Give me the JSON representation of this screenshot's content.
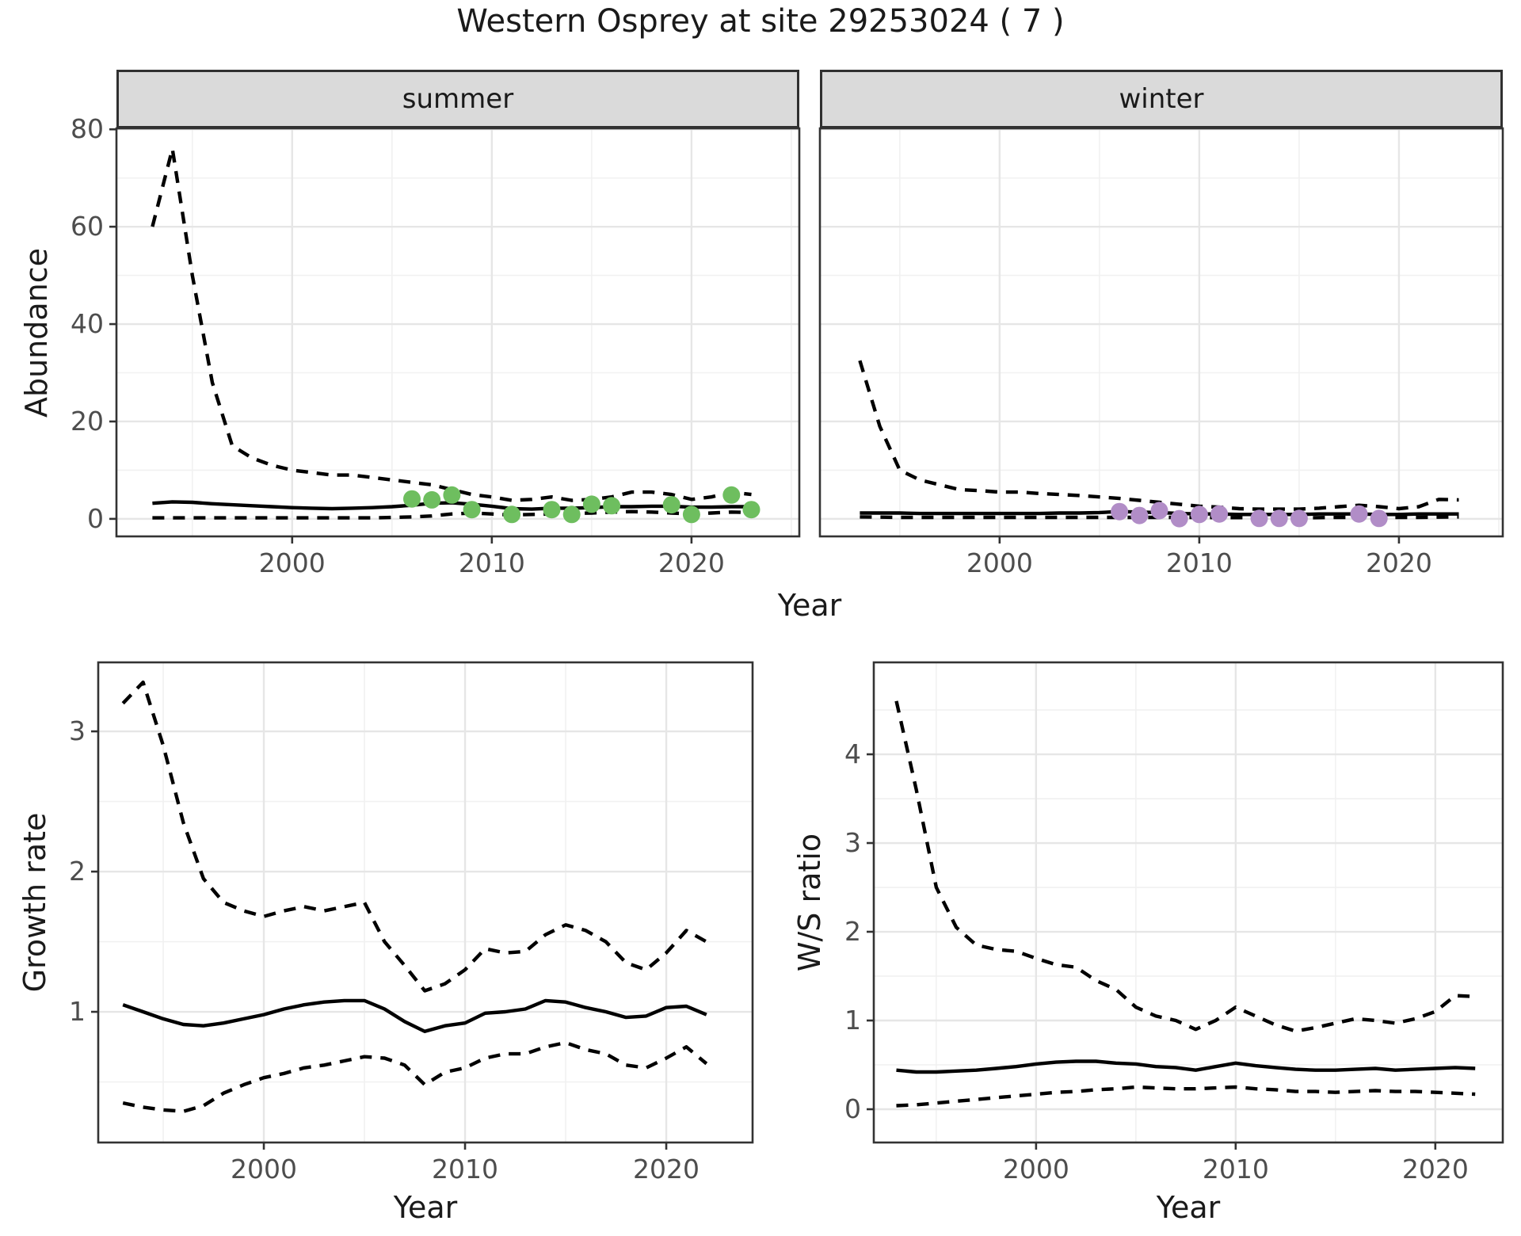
{
  "title": "Western Osprey at site 29253024 ( 7 )",
  "figures": {
    "abundance": {
      "ylabel": "Abundance",
      "xlabel": "Year",
      "facets": [
        {
          "label": "summer"
        },
        {
          "label": "winter"
        }
      ]
    },
    "growth": {
      "ylabel": "Growth rate",
      "xlabel": "Year"
    },
    "ws": {
      "ylabel": "W/S ratio",
      "xlabel": "Year"
    }
  },
  "colors": {
    "summer_points": "#6ebe5f",
    "winter_points": "#b18dc7",
    "line": "#000000",
    "grid_major": "#e6e6e6",
    "grid_minor": "#f1f1f1",
    "panel_border": "#333333",
    "strip_fill": "#dadada",
    "tick_label": "#4d4d4d"
  },
  "chart_data": [
    {
      "panel": "abundance-summer",
      "type": "line",
      "facet": "summer",
      "xlabel": "Year",
      "ylabel": "Abundance",
      "xlim": [
        1991.2,
        2025.4
      ],
      "ylim": [
        -3.6,
        80.2
      ],
      "x_ticks": [
        2000,
        2010,
        2020
      ],
      "x_minor": [
        1995,
        2005,
        2015,
        2025
      ],
      "y_ticks": [
        0,
        20,
        40,
        60,
        80
      ],
      "y_minor": [
        10,
        30,
        50,
        70
      ],
      "x": [
        1993,
        1994,
        1995,
        1996,
        1997,
        1998,
        1999,
        2000,
        2001,
        2002,
        2003,
        2004,
        2005,
        2006,
        2007,
        2008,
        2009,
        2010,
        2011,
        2012,
        2013,
        2014,
        2015,
        2016,
        2017,
        2018,
        2019,
        2020,
        2021,
        2022,
        2023
      ],
      "series": [
        {
          "name": "upper-ci",
          "style": "dashed",
          "y": [
            60,
            76,
            50,
            28,
            15,
            12.5,
            11,
            10,
            9.5,
            9,
            9,
            8.5,
            8,
            7.5,
            7,
            6,
            5,
            4.5,
            3.8,
            4,
            4.5,
            3.8,
            4,
            4.5,
            5.5,
            5.5,
            5,
            4,
            4.5,
            5.5,
            5
          ]
        },
        {
          "name": "lower-ci",
          "style": "dashed",
          "y": [
            0.2,
            0.2,
            0.2,
            0.2,
            0.2,
            0.2,
            0.2,
            0.2,
            0.2,
            0.2,
            0.2,
            0.2,
            0.3,
            0.4,
            0.6,
            1,
            1.2,
            1,
            0.8,
            0.9,
            1,
            1.1,
            1.2,
            1.4,
            1.5,
            1.4,
            1.2,
            1,
            1.2,
            1.4,
            1.3
          ]
        },
        {
          "name": "median",
          "style": "solid",
          "y": [
            3.2,
            3.5,
            3.4,
            3.1,
            2.9,
            2.7,
            2.5,
            2.3,
            2.2,
            2.1,
            2.2,
            2.3,
            2.5,
            2.8,
            3.2,
            3.3,
            3,
            2.6,
            2.1,
            2,
            2.2,
            2.2,
            2.3,
            2.5,
            2.5,
            2.6,
            2.6,
            2.4,
            2.4,
            2.5,
            2.5
          ]
        }
      ],
      "points": {
        "name": "summer-observations",
        "color_key": "summer_points",
        "x": [
          2006,
          2007,
          2008,
          2009,
          2011,
          2013,
          2014,
          2015,
          2016,
          2019,
          2020,
          2022,
          2023
        ],
        "y": [
          4.1,
          3.9,
          4.9,
          1.9,
          0.9,
          1.9,
          0.9,
          3.0,
          2.7,
          2.9,
          0.9,
          4.9,
          1.9
        ]
      }
    },
    {
      "panel": "abundance-winter",
      "type": "line",
      "facet": "winter",
      "xlabel": "Year",
      "ylabel": "Abundance",
      "xlim": [
        1991.0,
        2025.2
      ],
      "ylim": [
        -3.6,
        80.2
      ],
      "x_ticks": [
        2000,
        2010,
        2020
      ],
      "x_minor": [
        1995,
        2005,
        2015,
        2025
      ],
      "y_ticks": [
        0,
        20,
        40,
        60,
        80
      ],
      "y_minor": [
        10,
        30,
        50,
        70
      ],
      "x": [
        1993,
        1994,
        1995,
        1996,
        1997,
        1998,
        1999,
        2000,
        2001,
        2002,
        2003,
        2004,
        2005,
        2006,
        2007,
        2008,
        2009,
        2010,
        2011,
        2012,
        2013,
        2014,
        2015,
        2016,
        2017,
        2018,
        2019,
        2020,
        2021,
        2022,
        2023
      ],
      "series": [
        {
          "name": "upper-ci",
          "style": "dashed",
          "y": [
            32.5,
            19,
            10,
            8,
            7,
            6,
            5.8,
            5.5,
            5.5,
            5.2,
            5,
            4.8,
            4.5,
            4.2,
            3.8,
            3.4,
            3,
            2.6,
            2.4,
            2.1,
            2,
            2,
            2,
            2.2,
            2.5,
            2.8,
            2.5,
            2.1,
            2.5,
            4,
            3.9
          ]
        },
        {
          "name": "lower-ci",
          "style": "dashed",
          "y": [
            0.4,
            0.35,
            0.3,
            0.3,
            0.3,
            0.3,
            0.3,
            0.3,
            0.3,
            0.3,
            0.3,
            0.3,
            0.3,
            0.3,
            0.3,
            0.3,
            0.3,
            0.3,
            0.25,
            0.25,
            0.2,
            0.2,
            0.2,
            0.25,
            0.3,
            0.3,
            0.3,
            0.3,
            0.3,
            0.35,
            0.4
          ]
        },
        {
          "name": "median",
          "style": "solid",
          "y": [
            1.2,
            1.2,
            1.2,
            1.1,
            1.1,
            1.1,
            1.1,
            1.1,
            1.1,
            1.1,
            1.2,
            1.2,
            1.3,
            1.5,
            1.4,
            1.3,
            1.1,
            1,
            1,
            0.9,
            0.9,
            0.9,
            0.9,
            1,
            1,
            1,
            0.9,
            0.9,
            1,
            1,
            1
          ]
        }
      ],
      "points": {
        "name": "winter-observations",
        "color_key": "winter_points",
        "x": [
          2006,
          2007,
          2008,
          2009,
          2010,
          2011,
          2013,
          2014,
          2015,
          2018,
          2019
        ],
        "y": [
          1.5,
          0.7,
          1.7,
          0.05,
          0.9,
          1.0,
          0.1,
          0.1,
          0.1,
          1.0,
          0.1
        ]
      }
    },
    {
      "panel": "growth-rate",
      "type": "line",
      "xlabel": "Year",
      "ylabel": "Growth rate",
      "xlim": [
        1991.77,
        2024.29
      ],
      "ylim": [
        0.068,
        3.492
      ],
      "x_ticks": [
        2000,
        2010,
        2020
      ],
      "x_minor": [
        1995,
        2005,
        2015
      ],
      "y_ticks": [
        1,
        2,
        3
      ],
      "y_minor": [
        0.5,
        1.5,
        2.5
      ],
      "x": [
        1993,
        1994,
        1995,
        1996,
        1997,
        1998,
        1999,
        2000,
        2001,
        2002,
        2003,
        2004,
        2005,
        2006,
        2007,
        2008,
        2009,
        2010,
        2011,
        2012,
        2013,
        2014,
        2015,
        2016,
        2017,
        2018,
        2019,
        2020,
        2021,
        2022
      ],
      "series": [
        {
          "name": "upper-ci",
          "style": "dashed",
          "y": [
            3.2,
            3.35,
            2.9,
            2.35,
            1.95,
            1.78,
            1.72,
            1.68,
            1.72,
            1.75,
            1.72,
            1.75,
            1.78,
            1.5,
            1.33,
            1.15,
            1.2,
            1.3,
            1.45,
            1.42,
            1.43,
            1.55,
            1.62,
            1.58,
            1.5,
            1.35,
            1.3,
            1.42,
            1.58,
            1.5
          ]
        },
        {
          "name": "lower-ci",
          "style": "dashed",
          "y": [
            0.35,
            0.32,
            0.3,
            0.29,
            0.33,
            0.42,
            0.48,
            0.53,
            0.56,
            0.6,
            0.62,
            0.65,
            0.68,
            0.67,
            0.62,
            0.48,
            0.57,
            0.6,
            0.67,
            0.7,
            0.7,
            0.75,
            0.78,
            0.73,
            0.7,
            0.62,
            0.6,
            0.67,
            0.75,
            0.63
          ]
        },
        {
          "name": "median",
          "style": "solid",
          "y": [
            1.05,
            1.0,
            0.95,
            0.91,
            0.9,
            0.92,
            0.95,
            0.98,
            1.02,
            1.05,
            1.07,
            1.08,
            1.08,
            1.02,
            0.93,
            0.86,
            0.9,
            0.92,
            0.99,
            1.0,
            1.02,
            1.08,
            1.07,
            1.03,
            1.0,
            0.96,
            0.97,
            1.03,
            1.04,
            0.98
          ]
        }
      ]
    },
    {
      "panel": "ws-ratio",
      "type": "line",
      "xlabel": "Year",
      "ylabel": "W/S ratio",
      "xlim": [
        1991.87,
        2023.38
      ],
      "ylim": [
        -0.375,
        5.036
      ],
      "x_ticks": [
        2000,
        2010,
        2020
      ],
      "x_minor": [
        1995,
        2005,
        2015
      ],
      "y_ticks": [
        0,
        1,
        2,
        3,
        4
      ],
      "y_minor": [
        0.5,
        1.5,
        2.5,
        3.5,
        4.5
      ],
      "x": [
        1993,
        1994,
        1995,
        1996,
        1997,
        1998,
        1999,
        2000,
        2001,
        2002,
        2003,
        2004,
        2005,
        2006,
        2007,
        2008,
        2009,
        2010,
        2011,
        2012,
        2013,
        2014,
        2015,
        2016,
        2017,
        2018,
        2019,
        2020,
        2021,
        2022
      ],
      "series": [
        {
          "name": "upper-ci",
          "style": "dashed",
          "y": [
            4.6,
            3.6,
            2.5,
            2.05,
            1.85,
            1.8,
            1.78,
            1.7,
            1.63,
            1.6,
            1.45,
            1.35,
            1.15,
            1.05,
            1.0,
            0.9,
            1.0,
            1.15,
            1.05,
            0.95,
            0.88,
            0.92,
            0.97,
            1.02,
            1.0,
            0.97,
            1.02,
            1.1,
            1.28,
            1.27
          ]
        },
        {
          "name": "lower-ci",
          "style": "dashed",
          "y": [
            0.04,
            0.05,
            0.07,
            0.09,
            0.11,
            0.13,
            0.15,
            0.17,
            0.19,
            0.2,
            0.22,
            0.23,
            0.25,
            0.24,
            0.23,
            0.23,
            0.24,
            0.25,
            0.23,
            0.22,
            0.2,
            0.2,
            0.19,
            0.2,
            0.21,
            0.2,
            0.2,
            0.19,
            0.18,
            0.17
          ]
        },
        {
          "name": "median",
          "style": "solid",
          "y": [
            0.44,
            0.42,
            0.42,
            0.43,
            0.44,
            0.46,
            0.48,
            0.51,
            0.53,
            0.54,
            0.54,
            0.52,
            0.51,
            0.48,
            0.47,
            0.44,
            0.48,
            0.52,
            0.49,
            0.47,
            0.45,
            0.44,
            0.44,
            0.45,
            0.46,
            0.44,
            0.45,
            0.46,
            0.47,
            0.46
          ]
        }
      ]
    }
  ]
}
